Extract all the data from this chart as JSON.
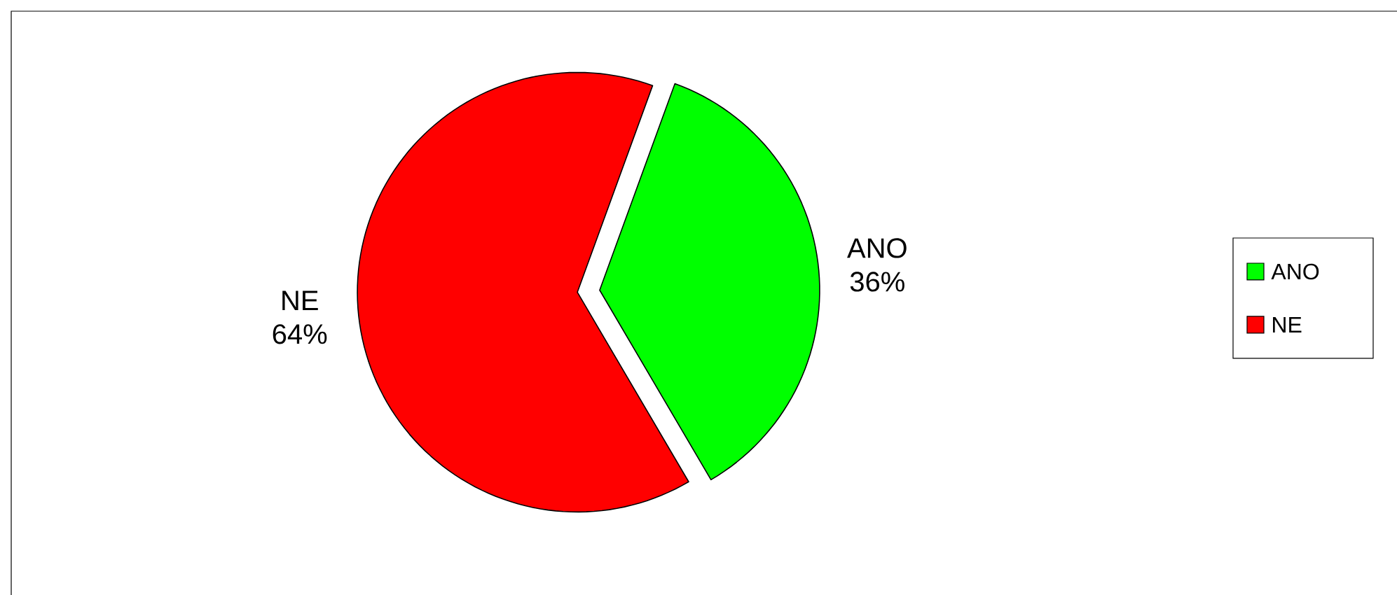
{
  "chart_data": {
    "type": "pie",
    "categories": [
      "ANO",
      "NE"
    ],
    "values": [
      36,
      64
    ],
    "value_labels": [
      "36%",
      "64%"
    ],
    "colors": [
      "#00ff00",
      "#ff0000"
    ],
    "legend": "right"
  }
}
